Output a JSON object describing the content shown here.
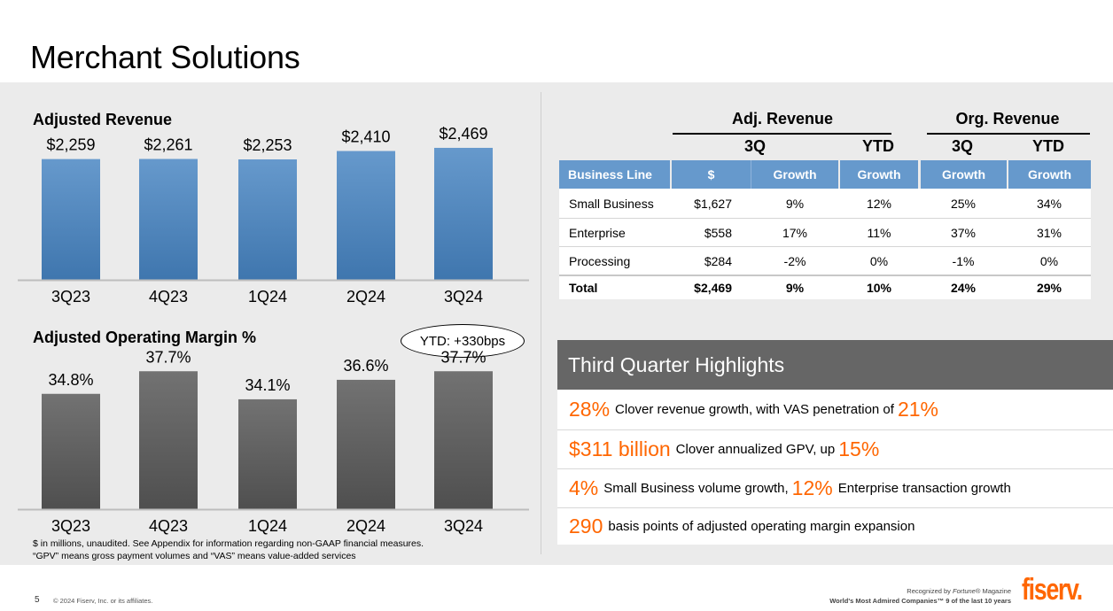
{
  "page": {
    "title": "Merchant Solutions",
    "page_number": "5",
    "copyright": "© 2024 Fiserv, Inc. or its affiliates.",
    "recognition_line1_prefix": "Recognized by ",
    "recognition_line1_italic": "Fortune",
    "recognition_line1_suffix": "® Magazine",
    "recognition_line2": "World's Most Admired Companies™ 9 of the last 10 years",
    "logo": "fiserv."
  },
  "chart_data": [
    {
      "type": "bar",
      "title": "Adjusted Revenue",
      "categories": [
        "3Q23",
        "4Q23",
        "1Q24",
        "2Q24",
        "3Q24"
      ],
      "values": [
        2259,
        2261,
        2253,
        2410,
        2469
      ],
      "labels": [
        "$2,259",
        "$2,261",
        "$2,253",
        "$2,410",
        "$2,469"
      ],
      "unit": "$ in millions",
      "xlabel": "",
      "ylabel": "",
      "ylim": [
        0,
        2750
      ],
      "grid": false,
      "color": "#5b8fc7"
    },
    {
      "type": "bar",
      "title": "Adjusted Operating Margin %",
      "categories": [
        "3Q23",
        "4Q23",
        "1Q24",
        "2Q24",
        "3Q24"
      ],
      "values": [
        34.8,
        37.7,
        34.1,
        36.6,
        37.7
      ],
      "labels": [
        "34.8%",
        "37.7%",
        "34.1%",
        "36.6%",
        "37.7%"
      ],
      "annotation": "YTD: +330bps",
      "xlabel": "",
      "ylabel": "",
      "ylim": [
        20,
        40
      ],
      "grid": false,
      "color": "#666666"
    }
  ],
  "footnote": {
    "line1": "$ in millions, unaudited. See Appendix for information regarding non-GAAP financial measures.",
    "line2": "“GPV” means gross payment volumes and “VAS” means value-added services"
  },
  "table": {
    "group_headers": [
      "Adj. Revenue",
      "Org. Revenue"
    ],
    "sub_headers": [
      "3Q",
      "YTD",
      "3Q",
      "YTD"
    ],
    "columns": [
      "Business Line",
      "$",
      "Growth",
      "Growth",
      "Growth",
      "Growth"
    ],
    "rows": [
      [
        "Small Business",
        "$1,627",
        "9%",
        "12%",
        "25%",
        "34%"
      ],
      [
        "Enterprise",
        "$558",
        "17%",
        "11%",
        "37%",
        "31%"
      ],
      [
        "Processing",
        "$284",
        "-2%",
        "0%",
        "-1%",
        "0%"
      ]
    ],
    "total": [
      "Total",
      "$2,469",
      "9%",
      "10%",
      "24%",
      "29%"
    ]
  },
  "highlights": {
    "title": "Third Quarter Highlights",
    "accent_color": "#ff6600",
    "items": [
      {
        "big1": "28%",
        "text1": "Clover revenue growth, with VAS penetration of",
        "big2": "21%",
        "text2": ""
      },
      {
        "big1": "$311 billion",
        "text1": "Clover annualized GPV, up",
        "big2": "15%",
        "text2": ""
      },
      {
        "big1": "4%",
        "text1": "Small Business volume growth,",
        "big2": "12%",
        "text2": "Enterprise transaction growth"
      },
      {
        "big1": "290",
        "text1": "basis points of adjusted operating margin expansion",
        "big2": "",
        "text2": ""
      }
    ]
  }
}
